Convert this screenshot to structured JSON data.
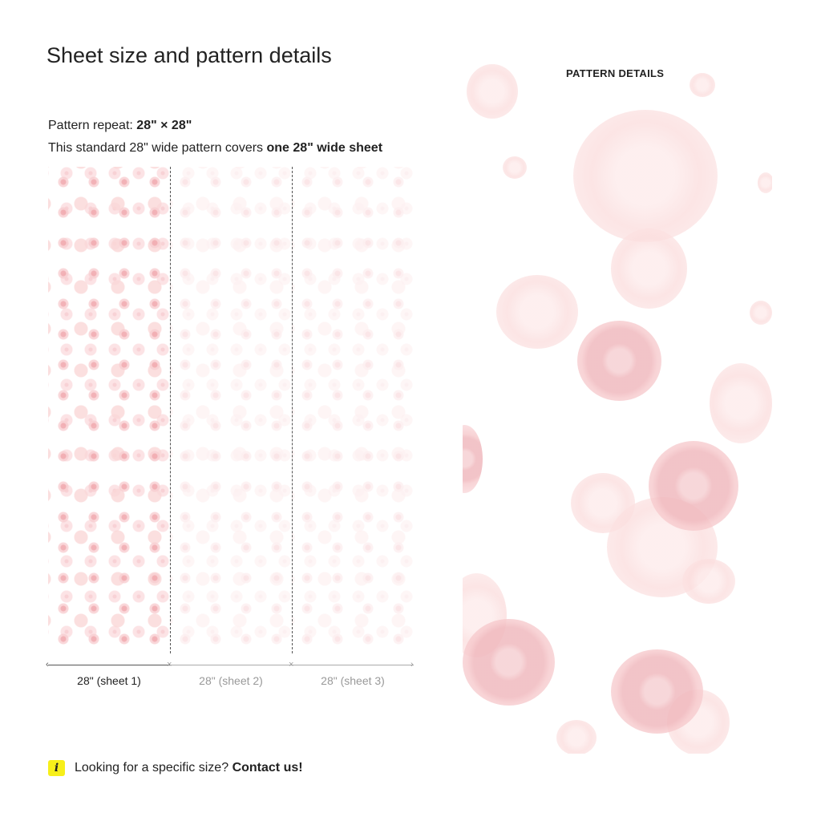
{
  "header": {
    "title": "Sheet size and pattern details"
  },
  "info": {
    "repeat_label": "Pattern repeat:",
    "repeat_value": "28\" × 28\"",
    "coverage_text": "This standard 28\" wide pattern covers",
    "coverage_bold": "one 28\" wide sheet"
  },
  "sheets": [
    {
      "label": "28\" (sheet 1)",
      "active": true
    },
    {
      "label": "28\" (sheet 2)",
      "active": false
    },
    {
      "label": "28\" (sheet 3)",
      "active": false
    }
  ],
  "footer": {
    "question": "Looking for a specific size?",
    "link": "Contact us!",
    "icon": "info-icon",
    "icon_color": "#f7ef1a"
  },
  "detail": {
    "title": "PATTERN DETAILS"
  },
  "colors": {
    "pattern_pink": "#f0b4b8",
    "pattern_light": "#fbe0e0"
  }
}
